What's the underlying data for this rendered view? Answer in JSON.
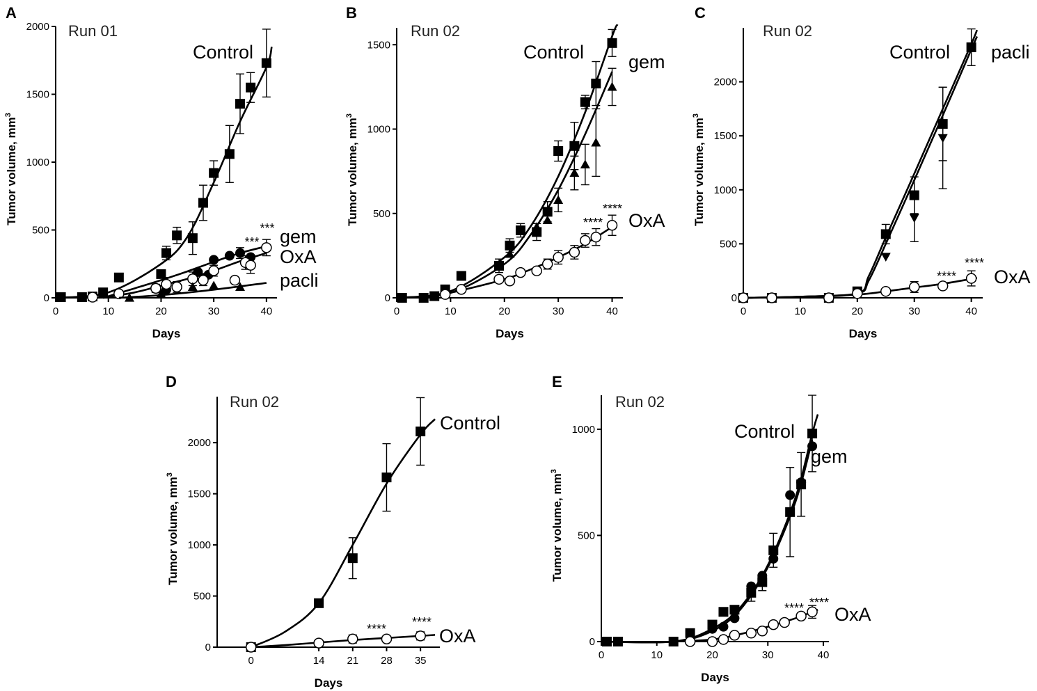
{
  "figure": {
    "ylabel": "Tumor volume, mm",
    "ylabel_sup": "3",
    "xlabel": "Days"
  },
  "chart_data": [
    {
      "panel": "A",
      "run_label": "Run 01",
      "type": "line",
      "xlabel": "Days",
      "ylabel": "Tumor volume, mm3",
      "xlim": [
        0,
        42
      ],
      "ylim": [
        0,
        2000
      ],
      "xticks": [
        0,
        10,
        20,
        30,
        40
      ],
      "yticks": [
        0,
        500,
        1000,
        1500,
        2000
      ],
      "series": [
        {
          "name": "Control",
          "marker": "square",
          "x": [
            1,
            5,
            7,
            9,
            12,
            20,
            21,
            23,
            26,
            28,
            30,
            33,
            35,
            37,
            40
          ],
          "values": [
            5,
            5,
            10,
            40,
            150,
            175,
            330,
            460,
            440,
            700,
            920,
            1060,
            1430,
            1550,
            1730
          ],
          "err": [
            0,
            0,
            0,
            0,
            0,
            0,
            50,
            60,
            120,
            130,
            90,
            210,
            220,
            110,
            250
          ],
          "curve": [
            [
              0,
              0
            ],
            [
              10,
              40
            ],
            [
              20,
              250
            ],
            [
              25,
              450
            ],
            [
              30,
              850
            ],
            [
              35,
              1300
            ],
            [
              40,
              1700
            ],
            [
              41,
              1850
            ]
          ]
        },
        {
          "name": "gem",
          "marker": "circle-filled",
          "annotation": "***",
          "x": [
            21,
            27,
            29,
            30,
            33,
            35,
            37
          ],
          "values": [
            60,
            190,
            170,
            280,
            310,
            330,
            300
          ],
          "err": [
            0,
            0,
            0,
            0,
            0,
            40,
            0
          ],
          "curve": [
            [
              9,
              0
            ],
            [
              15,
              70
            ],
            [
              20,
              130
            ],
            [
              25,
              195
            ],
            [
              30,
              265
            ],
            [
              35,
              330
            ],
            [
              40,
              380
            ]
          ]
        },
        {
          "name": "OxA",
          "marker": "circle-open",
          "annotation": "***",
          "x": [
            7,
            12,
            19,
            21,
            23,
            26,
            28,
            30,
            34,
            36,
            37,
            40
          ],
          "values": [
            5,
            30,
            70,
            100,
            80,
            140,
            130,
            200,
            130,
            260,
            240,
            370
          ],
          "err": [
            0,
            0,
            30,
            50,
            40,
            50,
            40,
            40,
            20,
            50,
            60,
            60
          ],
          "curve": [
            [
              9,
              0
            ],
            [
              15,
              40
            ],
            [
              20,
              90
            ],
            [
              25,
              140
            ],
            [
              30,
              200
            ],
            [
              35,
              270
            ],
            [
              40,
              330
            ]
          ]
        },
        {
          "name": "pacli",
          "marker": "triangle",
          "x": [
            14,
            20,
            26,
            30,
            35
          ],
          "values": [
            0,
            30,
            80,
            90,
            80
          ],
          "err": [
            0,
            0,
            0,
            0,
            0
          ],
          "curve": [
            [
              12,
              0
            ],
            [
              20,
              20
            ],
            [
              30,
              60
            ],
            [
              40,
              110
            ]
          ]
        }
      ]
    },
    {
      "panel": "B",
      "run_label": "Run 02",
      "type": "line",
      "xlabel": "Days",
      "ylabel": "Tumor volume, mm3",
      "xlim": [
        0,
        42
      ],
      "ylim": [
        0,
        1600
      ],
      "xticks": [
        0,
        10,
        20,
        30,
        40
      ],
      "yticks": [
        0,
        500,
        1000,
        1500
      ],
      "series": [
        {
          "name": "Control",
          "marker": "square",
          "x": [
            1,
            5,
            7,
            9,
            12,
            19,
            21,
            23,
            26,
            28,
            30,
            33,
            35,
            37,
            40
          ],
          "values": [
            0,
            0,
            10,
            50,
            130,
            190,
            310,
            400,
            390,
            510,
            870,
            900,
            1160,
            1270,
            1510
          ],
          "err": [
            0,
            0,
            0,
            0,
            0,
            40,
            40,
            40,
            50,
            60,
            60,
            140,
            40,
            130,
            80
          ],
          "curve": [
            [
              0,
              0
            ],
            [
              10,
              40
            ],
            [
              20,
              240
            ],
            [
              25,
              430
            ],
            [
              30,
              720
            ],
            [
              35,
              1100
            ],
            [
              40,
              1550
            ],
            [
              41,
              1620
            ]
          ]
        },
        {
          "name": "gem",
          "marker": "triangle",
          "x": [
            21,
            26,
            28,
            30,
            33,
            35,
            37,
            40
          ],
          "values": [
            260,
            420,
            460,
            580,
            740,
            790,
            920,
            1250
          ],
          "err": [
            0,
            0,
            0,
            70,
            100,
            120,
            200,
            110
          ],
          "curve": [
            [
              0,
              0
            ],
            [
              10,
              30
            ],
            [
              20,
              200
            ],
            [
              25,
              380
            ],
            [
              30,
              640
            ],
            [
              35,
              970
            ],
            [
              40,
              1340
            ]
          ]
        },
        {
          "name": "OxA",
          "marker": "circle-open",
          "annotation": "****",
          "x": [
            9,
            12,
            19,
            21,
            23,
            26,
            28,
            30,
            33,
            35,
            37,
            40
          ],
          "values": [
            20,
            50,
            110,
            100,
            150,
            160,
            200,
            240,
            270,
            340,
            360,
            430
          ],
          "err": [
            0,
            0,
            0,
            0,
            0,
            0,
            30,
            40,
            40,
            40,
            50,
            60
          ],
          "curve": [
            [
              5,
              0
            ],
            [
              10,
              30
            ],
            [
              20,
              110
            ],
            [
              25,
              170
            ],
            [
              30,
              240
            ],
            [
              35,
              320
            ],
            [
              40,
              420
            ]
          ]
        }
      ]
    },
    {
      "panel": "C",
      "run_label": "Run 02",
      "type": "line",
      "xlabel": "Days",
      "ylabel": "Tumor volume, mm3",
      "xlim": [
        0,
        42
      ],
      "ylim": [
        0,
        2500
      ],
      "xticks": [
        0,
        10,
        20,
        30,
        40
      ],
      "yticks": [
        0,
        500,
        1000,
        1500,
        2000
      ],
      "series": [
        {
          "name": "Control",
          "marker": "square",
          "x": [
            0,
            5,
            15,
            20,
            25,
            30,
            35,
            40
          ],
          "values": [
            0,
            0,
            0,
            60,
            590,
            950,
            1610,
            2320
          ],
          "err": [
            0,
            0,
            0,
            0,
            90,
            170,
            340,
            170
          ],
          "curve": [
            [
              0,
              0
            ],
            [
              10,
              10
            ],
            [
              20,
              40
            ],
            [
              22,
              200
            ],
            [
              25,
              560
            ],
            [
              30,
              1150
            ],
            [
              35,
              1750
            ],
            [
              40,
              2350
            ],
            [
              41,
              2480
            ]
          ]
        },
        {
          "name": "pacli",
          "marker": "triangle-down",
          "x": [
            25,
            30,
            35
          ],
          "values": [
            380,
            740,
            1480
          ],
          "err": [
            0,
            220,
            470
          ],
          "curve": [
            [
              0,
              0
            ],
            [
              10,
              10
            ],
            [
              20,
              40
            ],
            [
              22,
              160
            ],
            [
              25,
              500
            ],
            [
              30,
              1090
            ],
            [
              35,
              1690
            ],
            [
              40,
              2300
            ],
            [
              41,
              2420
            ]
          ]
        },
        {
          "name": "OxA",
          "marker": "circle-open",
          "annotation": "****",
          "x": [
            0,
            5,
            15,
            20,
            25,
            30,
            35,
            40
          ],
          "values": [
            0,
            0,
            0,
            40,
            60,
            100,
            110,
            180
          ],
          "err": [
            0,
            0,
            0,
            0,
            0,
            50,
            0,
            70
          ],
          "curve": [
            [
              0,
              0
            ],
            [
              10,
              10
            ],
            [
              20,
              30
            ],
            [
              25,
              60
            ],
            [
              30,
              95
            ],
            [
              35,
              130
            ],
            [
              40,
              175
            ],
            [
              41,
              185
            ]
          ]
        }
      ]
    },
    {
      "panel": "D",
      "run_label": "Run 02",
      "type": "line",
      "xlabel": "Days",
      "ylabel": "Tumor volume, mm3",
      "xlim": [
        -7,
        39
      ],
      "ylim": [
        0,
        2450
      ],
      "xticks": [
        0,
        14,
        21,
        28,
        35
      ],
      "yticks": [
        0,
        500,
        1000,
        1500,
        2000
      ],
      "series": [
        {
          "name": "Control",
          "marker": "square",
          "x": [
            0,
            14,
            21,
            28,
            35
          ],
          "values": [
            0,
            430,
            870,
            1660,
            2110
          ],
          "err": [
            0,
            0,
            200,
            330,
            330
          ],
          "curve": [
            [
              0,
              0
            ],
            [
              7,
              150
            ],
            [
              14,
              430
            ],
            [
              21,
              1000
            ],
            [
              28,
              1600
            ],
            [
              35,
              2080
            ],
            [
              38,
              2230
            ]
          ]
        },
        {
          "name": "OxA",
          "marker": "circle-open",
          "annotation": "****",
          "x": [
            0,
            14,
            21,
            28,
            35
          ],
          "values": [
            0,
            40,
            80,
            80,
            110
          ],
          "err": [
            0,
            0,
            40,
            0,
            40
          ],
          "curve": [
            [
              0,
              0
            ],
            [
              7,
              20
            ],
            [
              14,
              45
            ],
            [
              21,
              70
            ],
            [
              28,
              90
            ],
            [
              35,
              110
            ],
            [
              38,
              120
            ]
          ]
        }
      ]
    },
    {
      "panel": "E",
      "run_label": "Run 02",
      "type": "line",
      "xlabel": "Days",
      "ylabel": "Tumor volume, mm3",
      "xlim": [
        0,
        41
      ],
      "ylim": [
        0,
        1160
      ],
      "xticks": [
        0,
        10,
        20,
        30,
        40
      ],
      "yticks": [
        0,
        500,
        1000
      ],
      "series": [
        {
          "name": "Control",
          "marker": "square",
          "x": [
            1,
            3,
            13,
            16,
            20,
            22,
            24,
            27,
            29,
            31,
            34,
            36,
            38
          ],
          "values": [
            0,
            0,
            0,
            40,
            80,
            140,
            150,
            230,
            280,
            430,
            610,
            740,
            980
          ],
          "err": [
            0,
            0,
            0,
            0,
            0,
            0,
            0,
            40,
            40,
            80,
            210,
            150,
            180
          ],
          "curve": [
            [
              0,
              0
            ],
            [
              13,
              0
            ],
            [
              20,
              60
            ],
            [
              25,
              160
            ],
            [
              30,
              360
            ],
            [
              35,
              680
            ],
            [
              38,
              980
            ],
            [
              39,
              1070
            ]
          ]
        },
        {
          "name": "gem",
          "marker": "circle-filled",
          "x": [
            20,
            22,
            24,
            27,
            29,
            31,
            34,
            36,
            38
          ],
          "values": [
            60,
            70,
            110,
            260,
            310,
            390,
            690,
            750,
            920
          ],
          "err": [
            0,
            0,
            0,
            0,
            0,
            0,
            0,
            0,
            0
          ],
          "curve": [
            [
              0,
              0
            ],
            [
              13,
              0
            ],
            [
              20,
              50
            ],
            [
              25,
              150
            ],
            [
              30,
              350
            ],
            [
              35,
              660
            ],
            [
              38,
              950
            ]
          ]
        },
        {
          "name": "OxA",
          "marker": "circle-open",
          "annotation": "****",
          "x": [
            16,
            20,
            22,
            24,
            27,
            29,
            31,
            33,
            36,
            38
          ],
          "values": [
            0,
            0,
            10,
            30,
            40,
            50,
            80,
            90,
            120,
            140
          ],
          "err": [
            0,
            0,
            0,
            0,
            0,
            0,
            0,
            0,
            0,
            30
          ],
          "curve": [
            [
              13,
              0
            ],
            [
              20,
              10
            ],
            [
              25,
              35
            ],
            [
              30,
              70
            ],
            [
              35,
              110
            ],
            [
              38,
              140
            ],
            [
              39,
              150
            ]
          ]
        }
      ]
    }
  ]
}
